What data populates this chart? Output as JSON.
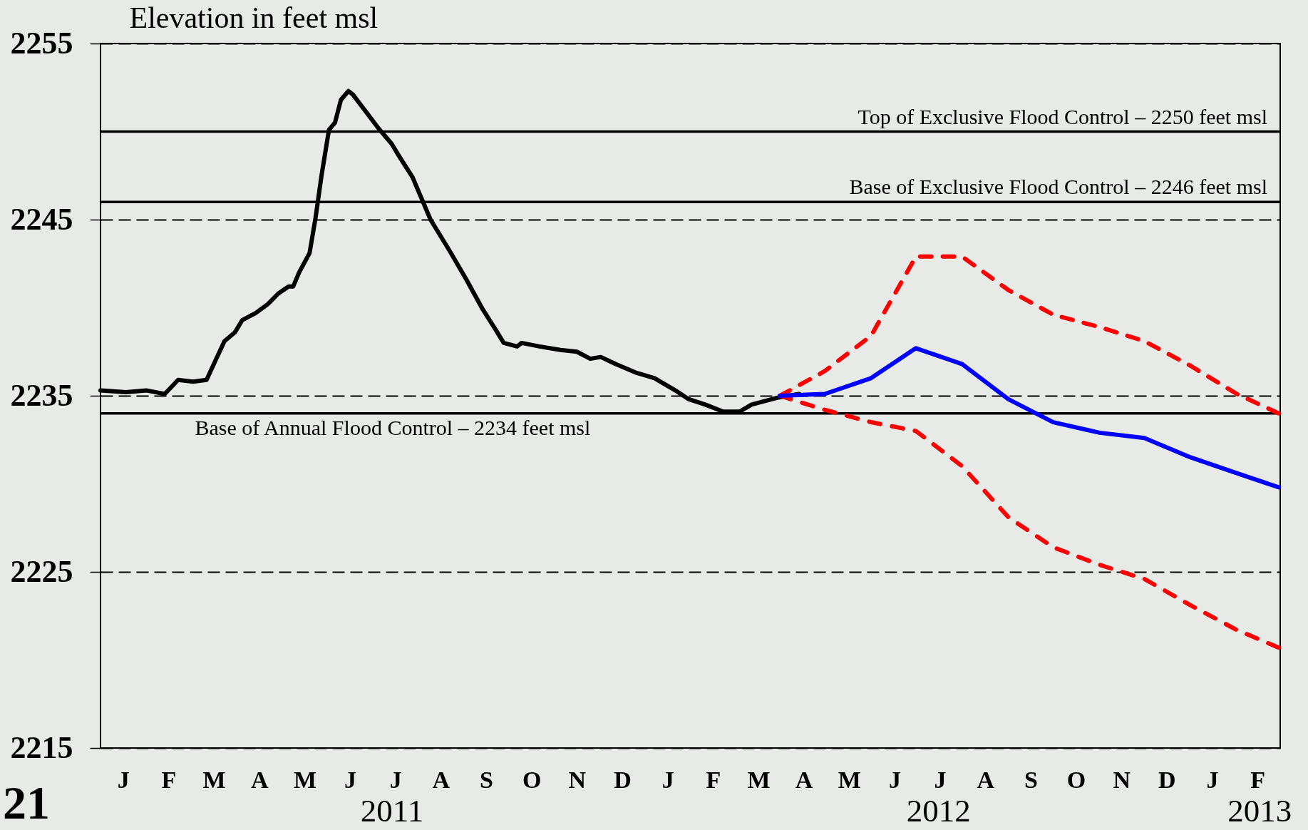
{
  "chart_data": {
    "type": "line",
    "ylabel": "Elevation in feet msl",
    "line_style": "solid",
    "grid": "y",
    "categories": [
      "J",
      "F",
      "M",
      "A",
      "M",
      "J",
      "J",
      "A",
      "S",
      "O",
      "N",
      "D",
      "J",
      "F",
      "M",
      "A",
      "M",
      "J",
      "J",
      "A",
      "S",
      "O",
      "N",
      "D",
      "J",
      "F"
    ],
    "x2lim": [
      "2011-01-01",
      "2013-03-01"
    ],
    "x2ticks": [
      {
        "value": "2011-07-15",
        "label": "2011"
      },
      {
        "value": "2012-07-15",
        "label": "2012"
      },
      {
        "value": "2013-02-15",
        "label": "2013"
      }
    ],
    "ylim": [
      2215,
      2255
    ],
    "yticks": [
      2215,
      2225,
      2235,
      2245,
      2255
    ],
    "series": [
      {
        "color": "#000000",
        "axis": "x2",
        "x": [
          "2011-01-01",
          "2011-01-18",
          "2011-02-01",
          "2011-02-13",
          "2011-02-22",
          "2011-03-04",
          "2011-03-13",
          "2011-03-19",
          "2011-03-25",
          "2011-04-01",
          "2011-04-06",
          "2011-04-15",
          "2011-04-23",
          "2011-04-30",
          "2011-05-07",
          "2011-05-10",
          "2011-05-14",
          "2011-05-21",
          "2011-05-25",
          "2011-05-29",
          "2011-06-03",
          "2011-06-07",
          "2011-06-11",
          "2011-06-16",
          "2011-06-19",
          "2011-06-28",
          "2011-07-06",
          "2011-07-15",
          "2011-07-20",
          "2011-07-29",
          "2011-08-10",
          "2011-08-23",
          "2011-09-03",
          "2011-09-14",
          "2011-09-23",
          "2011-09-28",
          "2011-10-07",
          "2011-10-10",
          "2011-10-22",
          "2011-11-05",
          "2011-11-16",
          "2011-11-25",
          "2011-12-02",
          "2011-12-12",
          "2011-12-26",
          "2012-01-07",
          "2012-01-21",
          "2012-01-30",
          "2012-02-10",
          "2012-02-22",
          "2012-03-04",
          "2012-03-12",
          "2012-03-21",
          "2012-03-30",
          "2012-04-13"
        ],
        "values": [
          2235.3,
          2235.2,
          2235.3,
          2235.1,
          2235.9,
          2235.8,
          2235.9,
          2237.0,
          2238.1,
          2238.6,
          2239.3,
          2239.7,
          2240.2,
          2240.8,
          2241.2,
          2241.2,
          2242.0,
          2243.1,
          2245.1,
          2247.5,
          2250.1,
          2250.5,
          2251.8,
          2252.3,
          2252.1,
          2251.1,
          2250.2,
          2249.3,
          2248.6,
          2247.4,
          2245.0,
          2243.2,
          2241.6,
          2239.9,
          2238.7,
          2238.0,
          2237.8,
          2238.0,
          2237.8,
          2237.6,
          2237.5,
          2237.1,
          2237.2,
          2236.8,
          2236.3,
          2236.0,
          2235.3,
          2234.8,
          2234.5,
          2234.1,
          2234.1,
          2234.5,
          2234.7,
          2234.9,
          2235.1
        ]
      },
      {
        "color": "#ff0000",
        "axis": "x2",
        "line_style": "dashed",
        "x": [
          "2012-03-31",
          "2012-04-30",
          "2012-05-31",
          "2012-06-30",
          "2012-07-31",
          "2012-08-31",
          "2012-09-30",
          "2012-10-31",
          "2012-11-30",
          "2012-12-31",
          "2013-01-31",
          "2013-02-28"
        ],
        "values": [
          2235.0,
          2236.4,
          2238.4,
          2242.9,
          2242.9,
          2241.0,
          2239.6,
          2238.9,
          2238.1,
          2236.7,
          2235.1,
          2234.0
        ]
      },
      {
        "color": "#ff0000",
        "axis": "x2",
        "line_style": "dashed",
        "x": [
          "2012-03-31",
          "2012-04-30",
          "2012-05-31",
          "2012-06-30",
          "2012-07-31",
          "2012-08-31",
          "2012-09-30",
          "2012-10-31",
          "2012-11-30",
          "2012-12-31",
          "2013-01-31",
          "2013-02-28"
        ],
        "values": [
          2235.0,
          2234.2,
          2233.5,
          2233.0,
          2231.0,
          2228.1,
          2226.4,
          2225.4,
          2224.6,
          2223.1,
          2221.7,
          2220.7
        ]
      },
      {
        "color": "#0000ff",
        "axis": "x2",
        "x": [
          "2012-03-31",
          "2012-04-30",
          "2012-05-31",
          "2012-06-30",
          "2012-07-31",
          "2012-08-31",
          "2012-09-30",
          "2012-10-31",
          "2012-11-30",
          "2012-12-31",
          "2013-01-31",
          "2013-02-28"
        ],
        "values": [
          2235.0,
          2235.1,
          2236.0,
          2237.7,
          2236.8,
          2234.8,
          2233.5,
          2232.9,
          2232.6,
          2231.5,
          2230.6,
          2229.8
        ]
      }
    ],
    "ref_lines": [
      {
        "axis": "y",
        "value": 2250,
        "label": "Top of Exclusive Flood Control – 2250 feet msl"
      },
      {
        "axis": "y",
        "value": 2246,
        "label": "Base of Exclusive Flood Control – 2246 feet msl"
      },
      {
        "axis": "y",
        "value": 2234,
        "label": "Base of Annual Flood Control – 2234 feet msl"
      }
    ],
    "annotations": [
      "21"
    ]
  }
}
